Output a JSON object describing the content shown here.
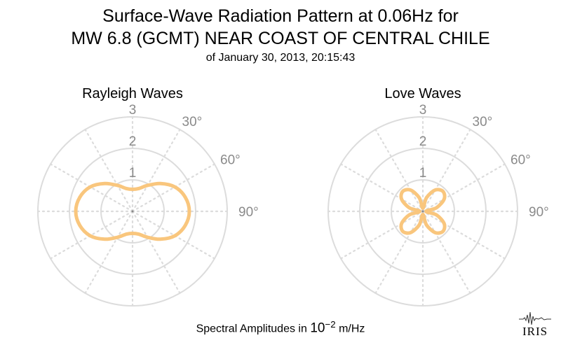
{
  "title_line1": "Surface-Wave Radiation Pattern at 0.06Hz for",
  "title_line2": "MW 6.8 (GCMT) NEAR COAST OF CENTRAL CHILE",
  "subtitle": "of January 30, 2013, 20:15:43",
  "footer": {
    "prefix": "Spectral Amplitudes in ",
    "base": "10",
    "exponent": "−2",
    "suffix": " m/Hz"
  },
  "logo_text": "IRIS",
  "colors": {
    "pattern": "#f9c67d",
    "grid": "#dcdcdc",
    "tick_label": "#8a8a8a"
  },
  "chart_data": [
    {
      "type": "polar-line",
      "title": "Rayleigh Waves",
      "r_ticks": [
        "1",
        "2",
        "3"
      ],
      "r_range": [
        0,
        3
      ],
      "angle_ticks": [
        "30°",
        "60°",
        "90°"
      ],
      "angle_unit": "degrees (azimuth, clockwise from north)",
      "series": [
        {
          "azimuth_deg": [
            0,
            15,
            30,
            45,
            60,
            75,
            90,
            105,
            120,
            135,
            150,
            165,
            180,
            195,
            210,
            225,
            240,
            255,
            270,
            285,
            300,
            315,
            330,
            345
          ],
          "amplitude": [
            0.7,
            0.75,
            0.95,
            1.25,
            1.55,
            1.73,
            1.8,
            1.73,
            1.55,
            1.25,
            0.95,
            0.75,
            0.7,
            0.75,
            0.95,
            1.25,
            1.55,
            1.73,
            1.8,
            1.73,
            1.55,
            1.25,
            0.95,
            0.75
          ]
        }
      ]
    },
    {
      "type": "polar-line",
      "title": "Love Waves",
      "r_ticks": [
        "1",
        "2",
        "3"
      ],
      "r_range": [
        0,
        3
      ],
      "angle_ticks": [
        "30°",
        "60°",
        "90°"
      ],
      "angle_unit": "degrees (azimuth, clockwise from north)",
      "series": [
        {
          "azimuth_deg": [
            0,
            15,
            30,
            45,
            60,
            75,
            90,
            105,
            120,
            135,
            150,
            165,
            180,
            195,
            210,
            225,
            240,
            255,
            270,
            285,
            300,
            315,
            330,
            345
          ],
          "amplitude": [
            0.1,
            0.45,
            0.78,
            0.9,
            0.78,
            0.45,
            0.1,
            0.45,
            0.78,
            0.9,
            0.78,
            0.45,
            0.1,
            0.45,
            0.78,
            0.9,
            0.78,
            0.45,
            0.1,
            0.45,
            0.78,
            0.9,
            0.78,
            0.45
          ]
        }
      ]
    }
  ]
}
